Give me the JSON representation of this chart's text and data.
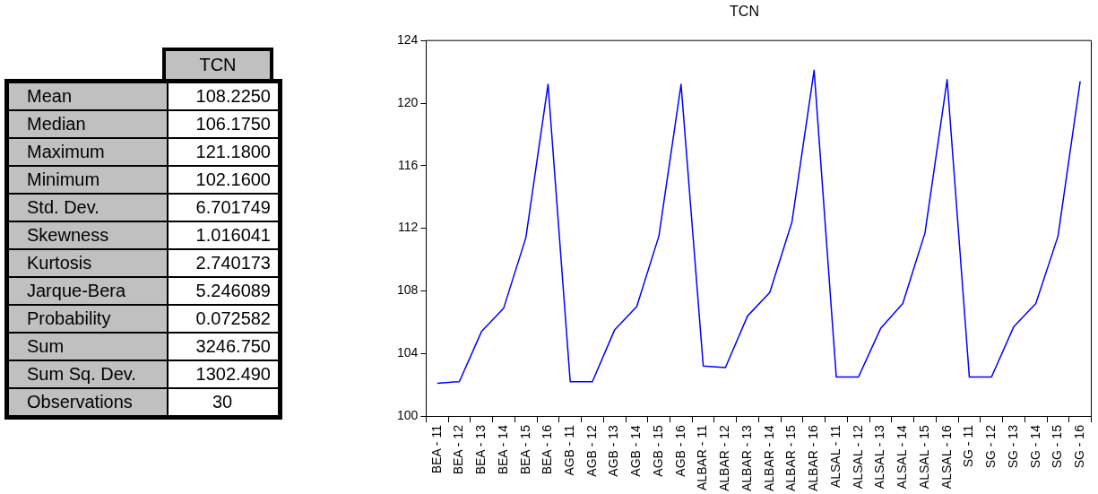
{
  "chart_data": [
    {
      "type": "other",
      "title": "TCN",
      "categories": [
        "Mean",
        "Median",
        "Maximum",
        "Minimum",
        "Std. Dev.",
        "Skewness",
        "Kurtosis",
        "Jarque-Bera",
        "Probability",
        "Sum",
        "Sum Sq. Dev.",
        "Observations"
      ],
      "value_labels": [
        "108.2250",
        "106.1750",
        "121.1800",
        "102.1600",
        "6.701749",
        "1.016041",
        "2.740173",
        "5.246089",
        "0.072582",
        "3246.750",
        "1302.490",
        "30"
      ]
    },
    {
      "type": "line",
      "title": "TCN",
      "categories": [
        "BEA - 11",
        "BEA - 12",
        "BEA - 13",
        "BEA - 14",
        "BEA - 15",
        "BEA - 16",
        "AGB - 11",
        "AGB - 12",
        "AGB - 13",
        "AGB - 14",
        "AGB - 15",
        "AGB - 16",
        "ALBAR - 11",
        "ALBAR - 12",
        "ALBAR - 13",
        "ALBAR - 14",
        "ALBAR - 15",
        "ALBAR - 16",
        "ALSAL - 11",
        "ALSAL - 12",
        "ALSAL - 13",
        "ALSAL - 14",
        "ALSAL - 15",
        "ALSAL - 16",
        "SG - 11",
        "SG - 12",
        "SG - 13",
        "SG - 14",
        "SG - 15",
        "SG - 16"
      ],
      "series": [
        {
          "color": "#0000ff",
          "values": [
            102.1,
            102.2,
            105.4,
            106.9,
            111.4,
            121.2,
            102.2,
            102.2,
            105.5,
            107.0,
            111.5,
            121.2,
            103.2,
            103.1,
            106.4,
            107.9,
            112.4,
            122.1,
            102.5,
            102.5,
            105.6,
            107.2,
            111.7,
            121.5,
            102.5,
            102.5,
            105.7,
            107.2,
            111.5,
            121.4
          ]
        }
      ],
      "ylim": [
        100,
        124
      ],
      "yticks": [
        100,
        104,
        108,
        112,
        116,
        120,
        124
      ],
      "grid": false,
      "legend": false,
      "marker": "none",
      "line_style": "solid"
    }
  ]
}
